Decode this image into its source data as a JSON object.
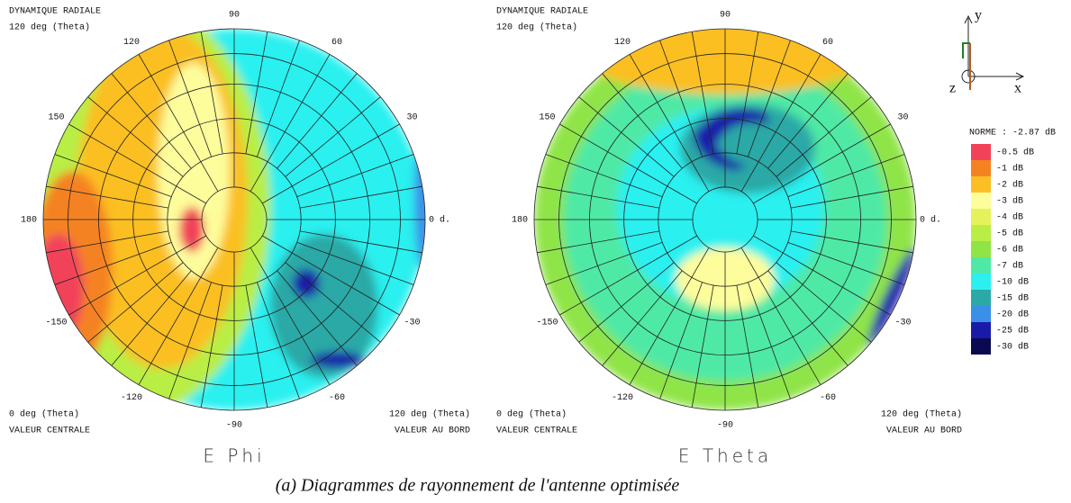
{
  "plots": [
    {
      "header": [
        "DYNAMIQUE RADIALE",
        "120 deg (Theta)"
      ],
      "angles": [
        "0 d.",
        "30",
        "60",
        "90",
        "120",
        "150",
        "180",
        "-150",
        "-120",
        "-90",
        "-60",
        "-30"
      ],
      "footer_left": [
        "0 deg (Theta)",
        "VALEUR CENTRALE"
      ],
      "footer_right": [
        "120 deg (Theta)",
        "VALEUR AU BORD"
      ],
      "title": "E Phi"
    },
    {
      "header": [
        "DYNAMIQUE RADIALE",
        "120 deg (Theta)"
      ],
      "angles": [
        "0 d.",
        "30",
        "60",
        "90",
        "120",
        "150",
        "180",
        "-150",
        "-120",
        "-90",
        "-60",
        "-30"
      ],
      "footer_left": [
        "0 deg (Theta)",
        "VALEUR CENTRALE"
      ],
      "footer_right": [
        "120 deg (Theta)",
        "VALEUR AU BORD"
      ],
      "title": "E Theta"
    }
  ],
  "axes_icon": {
    "y": "y",
    "x": "x",
    "z": "z"
  },
  "legend": {
    "title": "NORME : -2.87 dB",
    "entries": [
      {
        "label": "-0.5 dB",
        "color": "#f2425a"
      },
      {
        "label": "-1 dB",
        "color": "#f58220"
      },
      {
        "label": "-2 dB",
        "color": "#fbbf24"
      },
      {
        "label": "-3 dB",
        "color": "#fdfd9c"
      },
      {
        "label": "-4 dB",
        "color": "#e6f25c"
      },
      {
        "label": "-5 dB",
        "color": "#b9ee45"
      },
      {
        "label": "-6 dB",
        "color": "#8fe446"
      },
      {
        "label": "-7 dB",
        "color": "#4fe9a6"
      },
      {
        "label": "-10 dB",
        "color": "#2cf0f0"
      },
      {
        "label": "-15 dB",
        "color": "#2aa9a6"
      },
      {
        "label": "-20 dB",
        "color": "#3a8fe8"
      },
      {
        "label": "-25 dB",
        "color": "#1a1aa8"
      },
      {
        "label": "-30 dB",
        "color": "#0a0a50"
      }
    ]
  },
  "caption": "(a) Diagrammes de rayonnement de l'antenne optimisée"
}
